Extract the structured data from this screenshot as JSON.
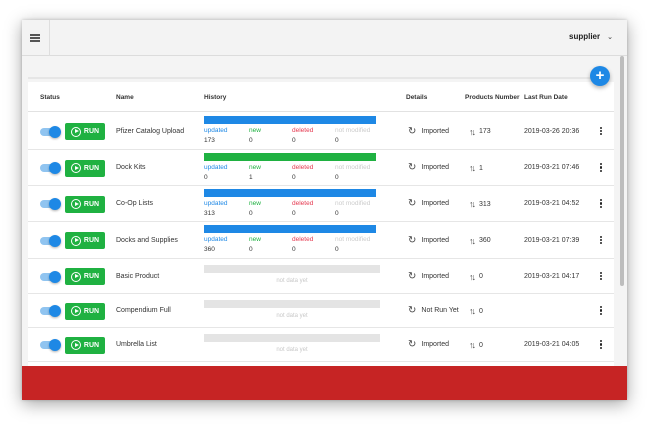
{
  "header": {
    "user_menu_label": "supplier"
  },
  "table": {
    "columns": {
      "status": "Status",
      "name": "Name",
      "history": "History",
      "details": "Details",
      "products_number": "Products Number",
      "last_run_date": "Last Run Date"
    },
    "run_label": "RUN",
    "history_labels": {
      "updated": "updated",
      "new": "new",
      "deleted": "deleted",
      "not_modified": "not modified"
    },
    "no_data_label": "not data yet",
    "rows": [
      {
        "name": "Pfizer Catalog Upload",
        "bar_color": "#1e88e5",
        "has_history": true,
        "history": {
          "updated": "173",
          "new": "0",
          "deleted": "0",
          "not_modified": "0"
        },
        "details": "Imported",
        "products": "173",
        "last_run": "2019-03-26 20:36"
      },
      {
        "name": "Dock Kits",
        "bar_color": "#1fb141",
        "has_history": true,
        "history": {
          "updated": "0",
          "new": "1",
          "deleted": "0",
          "not_modified": "0"
        },
        "details": "Imported",
        "products": "1",
        "last_run": "2019-03-21 07:46"
      },
      {
        "name": "Co-Op Lists",
        "bar_color": "#1e88e5",
        "has_history": true,
        "history": {
          "updated": "313",
          "new": "0",
          "deleted": "0",
          "not_modified": "0"
        },
        "details": "Imported",
        "products": "313",
        "last_run": "2019-03-21 04:52"
      },
      {
        "name": "Docks and Supplies",
        "bar_color": "#1e88e5",
        "has_history": true,
        "history": {
          "updated": "360",
          "new": "0",
          "deleted": "0",
          "not_modified": "0"
        },
        "details": "Imported",
        "products": "360",
        "last_run": "2019-03-21 07:39"
      },
      {
        "name": "Basic Product",
        "has_history": false,
        "details": "Imported",
        "products": "0",
        "last_run": "2019-03-21 04:17"
      },
      {
        "name": "Compendium Full",
        "has_history": false,
        "details": "Not Run Yet",
        "products": "0",
        "last_run": ""
      },
      {
        "name": "Umbrella List",
        "has_history": false,
        "details": "Imported",
        "products": "0",
        "last_run": "2019-03-21 04:05"
      }
    ]
  },
  "colors": {
    "accent": "#1e88e5",
    "run_button": "#1fb141",
    "label_updated": "#1e88e5",
    "label_new": "#1fb141",
    "label_deleted": "#e53950",
    "label_not_modified": "#cccccc",
    "footer": "#c62424"
  },
  "icons": [
    "menu-icon",
    "chevron-down-icon",
    "plus-icon",
    "play-circle-icon",
    "sync-icon",
    "swap-vertical-icon",
    "more-vertical-icon"
  ]
}
